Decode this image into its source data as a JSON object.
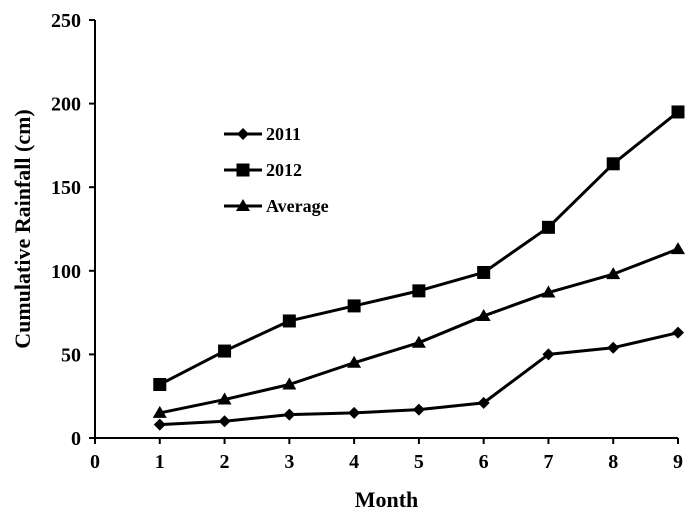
{
  "chart_data": {
    "type": "line",
    "title": "",
    "xlabel": "Month",
    "ylabel": "Cumulative Rainfall (cm)",
    "xlim": [
      0,
      9
    ],
    "ylim": [
      0,
      250
    ],
    "x_ticks": [
      0,
      1,
      2,
      3,
      4,
      5,
      6,
      7,
      8,
      9
    ],
    "y_ticks": [
      0,
      50,
      100,
      150,
      200,
      250
    ],
    "grid": false,
    "legend_position": "upper-left",
    "x": [
      1,
      2,
      3,
      4,
      5,
      6,
      7,
      8,
      9
    ],
    "series": [
      {
        "name": "2011",
        "marker": "diamond",
        "color": "#000000",
        "values": [
          8,
          10,
          14,
          15,
          17,
          21,
          50,
          54,
          63
        ]
      },
      {
        "name": "2012",
        "marker": "square",
        "color": "#000000",
        "values": [
          32,
          52,
          70,
          79,
          88,
          99,
          126,
          164,
          195
        ]
      },
      {
        "name": "Average",
        "marker": "triangle",
        "color": "#000000",
        "values": [
          15,
          23,
          32,
          45,
          57,
          73,
          87,
          98,
          113
        ]
      }
    ]
  }
}
